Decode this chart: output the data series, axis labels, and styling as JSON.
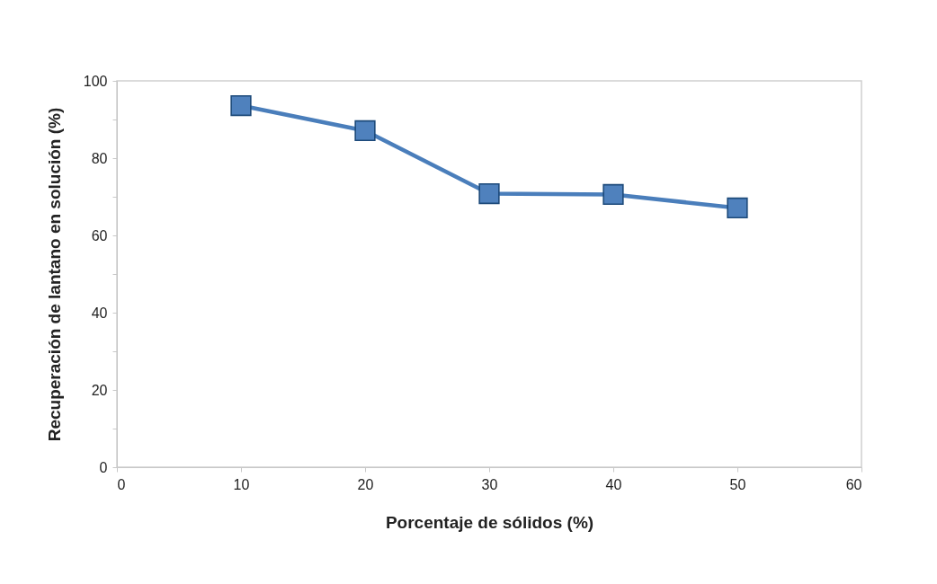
{
  "chart_data": {
    "type": "line",
    "xlabel": "Porcentaje de sólidos (%)",
    "ylabel": "Recuperación de lantano en solución (%)",
    "x": [
      10,
      20,
      30,
      40,
      50
    ],
    "series": [
      {
        "color": "#4a7ebb",
        "values": [
          93.6,
          87.1,
          70.8,
          70.6,
          67.1
        ]
      }
    ],
    "xlim": [
      0,
      60
    ],
    "xticks": [
      0,
      10,
      20,
      30,
      40,
      50,
      60
    ],
    "ylim": [
      0,
      100
    ],
    "yticks": [
      0,
      {
        "value": 10,
        "label": null
      },
      20,
      {
        "value": 30,
        "label": null
      },
      40,
      {
        "value": 50,
        "label": null
      },
      60,
      {
        "value": 70,
        "label": null
      },
      80,
      {
        "value": 90,
        "label": null
      },
      100
    ],
    "grid": false,
    "legend": false,
    "marker": "square",
    "line_style": "solid"
  }
}
